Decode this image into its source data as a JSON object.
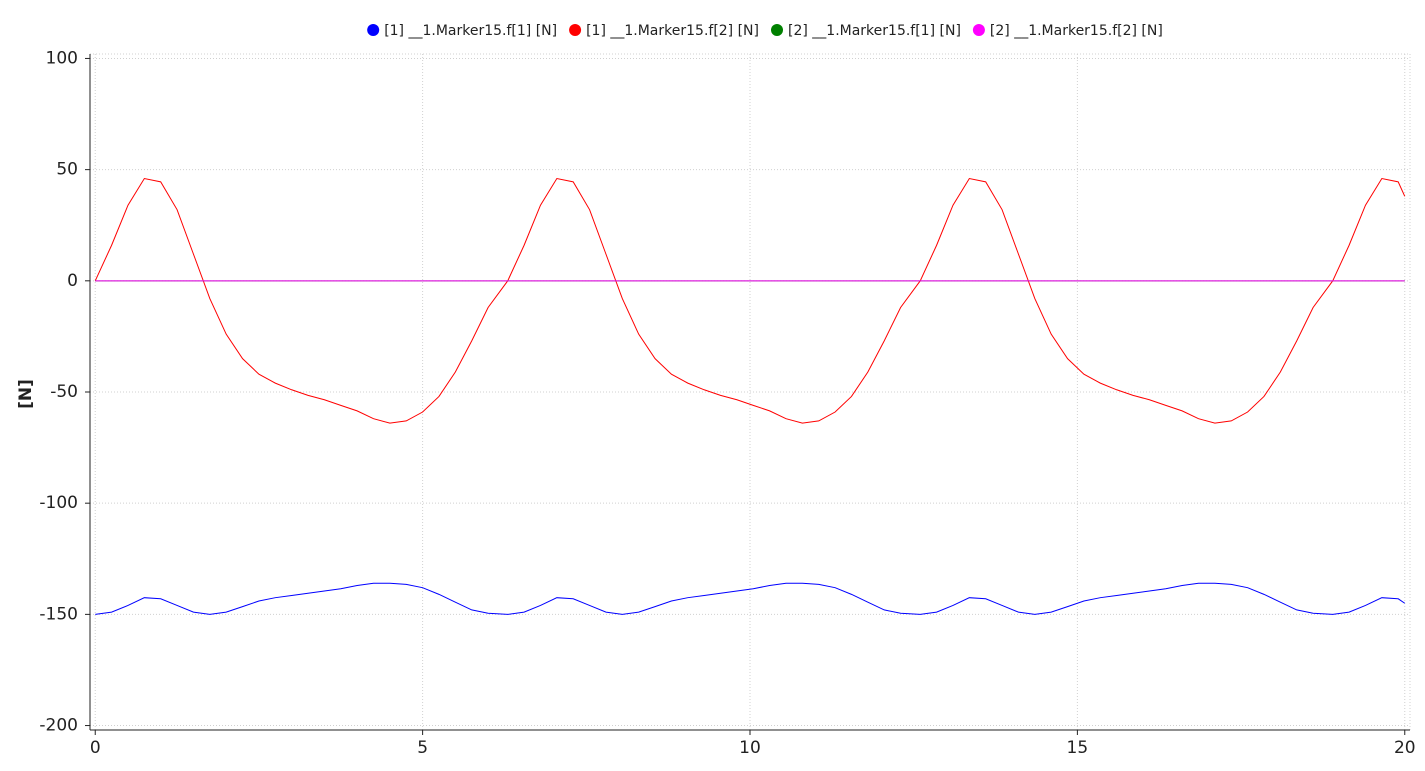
{
  "chart_data": {
    "type": "line",
    "y_label": "[N]",
    "x": [
      0,
      0.25,
      0.5,
      0.75,
      1.0,
      1.25,
      1.5,
      1.75,
      2.0,
      2.25,
      2.5,
      2.75,
      3.0,
      3.25,
      3.5,
      3.75,
      4.0,
      4.25,
      4.5,
      4.75,
      5.0,
      5.25,
      5.5,
      5.75,
      6.0,
      6.3,
      6.55,
      6.8,
      7.05,
      7.3,
      7.55,
      7.8,
      8.05,
      8.3,
      8.55,
      8.8,
      9.05,
      9.3,
      9.55,
      9.8,
      10.05,
      10.3,
      10.55,
      10.8,
      11.05,
      11.3,
      11.55,
      11.8,
      12.05,
      12.3,
      12.6,
      12.85,
      13.1,
      13.35,
      13.6,
      13.85,
      14.1,
      14.35,
      14.6,
      14.85,
      15.1,
      15.35,
      15.6,
      15.85,
      16.1,
      16.35,
      16.6,
      16.85,
      17.1,
      17.35,
      17.6,
      17.85,
      18.1,
      18.35,
      18.6,
      18.9,
      19.15,
      19.4,
      19.65,
      19.9,
      20
    ],
    "series": [
      {
        "name": "[1] __1.Marker15.f[1] [N]",
        "color": "#0000ff",
        "values": [
          -150,
          -149,
          -146,
          -142.5,
          -143,
          -146,
          -149,
          -150,
          -149,
          -146.5,
          -144,
          -142.5,
          -141.5,
          -140.5,
          -139.5,
          -138.5,
          -137,
          -136,
          -136,
          -136.5,
          -138,
          -141,
          -144.5,
          -148,
          -149.5,
          -150,
          -149,
          -146,
          -142.5,
          -143,
          -146,
          -149,
          -150,
          -149,
          -146.5,
          -144,
          -142.5,
          -141.5,
          -140.5,
          -139.5,
          -138.5,
          -137,
          -136,
          -136,
          -136.5,
          -138,
          -141,
          -144.5,
          -148,
          -149.5,
          -150,
          -149,
          -146,
          -142.5,
          -143,
          -146,
          -149,
          -150,
          -149,
          -146.5,
          -144,
          -142.5,
          -141.5,
          -140.5,
          -139.5,
          -138.5,
          -137,
          -136,
          -136,
          -136.5,
          -138,
          -141,
          -144.5,
          -148,
          -149.5,
          -150,
          -149,
          -146,
          -142.5,
          -143,
          -145
        ]
      },
      {
        "name": "[1] __1.Marker15.f[2] [N]",
        "color": "#ff0000",
        "values": [
          0,
          16,
          34,
          46,
          44.5,
          32,
          12,
          -8,
          -24,
          -35,
          -42,
          -46,
          -49,
          -51.5,
          -53.5,
          -56,
          -58.5,
          -62,
          -64,
          -63,
          -59,
          -52,
          -41,
          -27,
          -12,
          0,
          16,
          34,
          46,
          44.5,
          32,
          12,
          -8,
          -24,
          -35,
          -42,
          -46,
          -49,
          -51.5,
          -53.5,
          -56,
          -58.5,
          -62,
          -64,
          -63,
          -59,
          -52,
          -41,
          -27,
          -12,
          0,
          16,
          34,
          46,
          44.5,
          32,
          12,
          -8,
          -24,
          -35,
          -42,
          -46,
          -49,
          -51.5,
          -53.5,
          -56,
          -58.5,
          -62,
          -64,
          -63,
          -59,
          -52,
          -41,
          -27,
          -12,
          0,
          16,
          34,
          46,
          44.5,
          38
        ]
      },
      {
        "name": "[2] __1.Marker15.f[1] [N]",
        "color": "#008000",
        "values": [
          0,
          0,
          0,
          0,
          0,
          0,
          0,
          0,
          0,
          0,
          0,
          0,
          0,
          0,
          0,
          0,
          0,
          0,
          0,
          0,
          0,
          0,
          0,
          0,
          0,
          0,
          0,
          0,
          0,
          0,
          0,
          0,
          0,
          0,
          0,
          0,
          0,
          0,
          0,
          0,
          0,
          0,
          0,
          0,
          0,
          0,
          0,
          0,
          0,
          0,
          0,
          0,
          0,
          0,
          0,
          0,
          0,
          0,
          0,
          0,
          0,
          0,
          0,
          0,
          0,
          0,
          0,
          0,
          0,
          0,
          0,
          0,
          0,
          0,
          0,
          0,
          0,
          0,
          0,
          0,
          0
        ]
      },
      {
        "name": "[2] __1.Marker15.f[2] [N]",
        "color": "#ff00ff",
        "values": [
          0,
          0,
          0,
          0,
          0,
          0,
          0,
          0,
          0,
          0,
          0,
          0,
          0,
          0,
          0,
          0,
          0,
          0,
          0,
          0,
          0,
          0,
          0,
          0,
          0,
          0,
          0,
          0,
          0,
          0,
          0,
          0,
          0,
          0,
          0,
          0,
          0,
          0,
          0,
          0,
          0,
          0,
          0,
          0,
          0,
          0,
          0,
          0,
          0,
          0,
          0,
          0,
          0,
          0,
          0,
          0,
          0,
          0,
          0,
          0,
          0,
          0,
          0,
          0,
          0,
          0,
          0,
          0,
          0,
          0,
          0,
          0,
          0,
          0,
          0,
          0,
          0,
          0,
          0,
          0,
          0
        ]
      }
    ],
    "xlim": [
      -0.08,
      20.08
    ],
    "xticks": [
      0,
      5,
      10,
      15,
      20
    ],
    "ylim": [
      -202,
      102
    ],
    "yticks": [
      -200,
      -150,
      -100,
      -50,
      0,
      50,
      100
    ],
    "grid": true,
    "legend": "top"
  }
}
